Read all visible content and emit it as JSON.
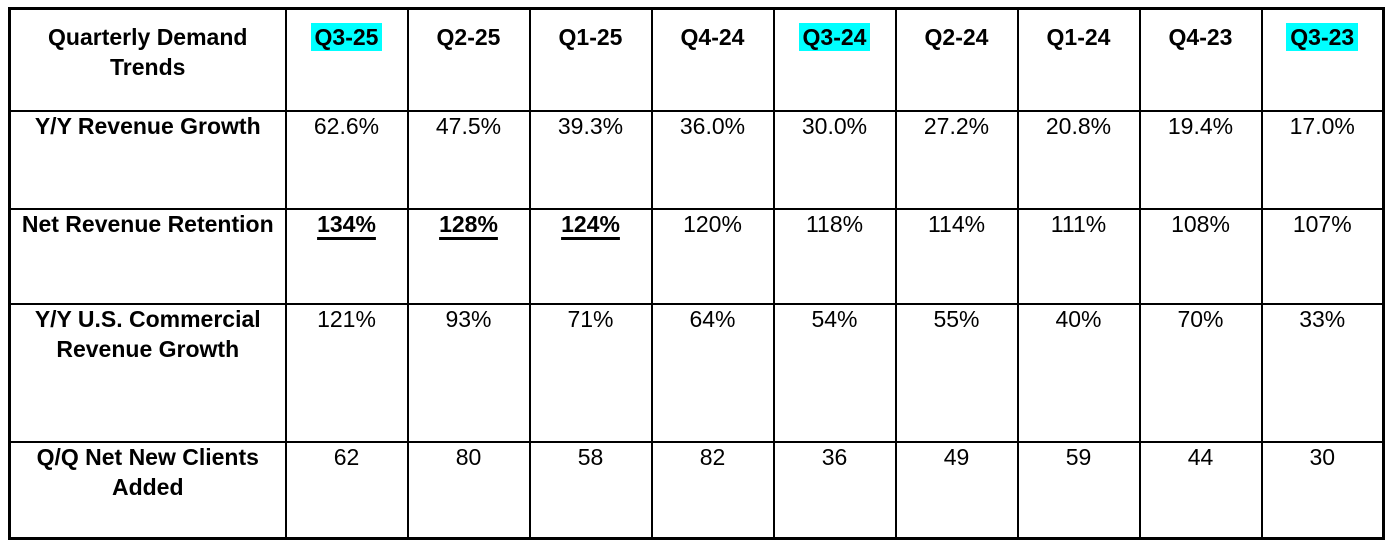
{
  "table": {
    "corner_label": "Quarterly Demand Trends",
    "columns": [
      "Q3-25",
      "Q2-25",
      "Q1-25",
      "Q4-24",
      "Q3-24",
      "Q2-24",
      "Q1-24",
      "Q4-23",
      "Q3-23"
    ],
    "highlighted_columns": [
      "Q3-25",
      "Q3-24",
      "Q3-23"
    ],
    "rows": [
      {
        "label": "Y/Y Revenue Growth",
        "values": [
          "62.6%",
          "47.5%",
          "39.3%",
          "36.0%",
          "30.0%",
          "27.2%",
          "20.8%",
          "19.4%",
          "17.0%"
        ]
      },
      {
        "label": "Net Revenue Retention",
        "values": [
          "134%",
          "128%",
          "124%",
          "120%",
          "118%",
          "114%",
          "111%",
          "108%",
          "107%"
        ],
        "emphasized_values": [
          "134%",
          "128%",
          "124%"
        ]
      },
      {
        "label": "Y/Y U.S. Commercial Revenue Growth",
        "values": [
          "121%",
          "93%",
          "71%",
          "64%",
          "54%",
          "55%",
          "40%",
          "70%",
          "33%"
        ]
      },
      {
        "label": "Q/Q Net New Clients Added",
        "values": [
          "62",
          "80",
          "58",
          "82",
          "36",
          "49",
          "59",
          "44",
          "30"
        ]
      }
    ]
  },
  "colors": {
    "highlight": "#00FFFF",
    "border": "#000000",
    "text": "#000000",
    "background": "#FFFFFF"
  },
  "chart_data": {
    "type": "table",
    "title": "Quarterly Demand Trends",
    "categories": [
      "Q3-25",
      "Q2-25",
      "Q1-25",
      "Q4-24",
      "Q3-24",
      "Q2-24",
      "Q1-24",
      "Q4-23",
      "Q3-23"
    ],
    "series": [
      {
        "name": "Y/Y Revenue Growth",
        "values": [
          62.6,
          47.5,
          39.3,
          36.0,
          30.0,
          27.2,
          20.8,
          19.4,
          17.0
        ],
        "unit": "%"
      },
      {
        "name": "Net Revenue Retention",
        "values": [
          134,
          128,
          124,
          120,
          118,
          114,
          111,
          108,
          107
        ],
        "unit": "%"
      },
      {
        "name": "Y/Y U.S. Commercial Revenue Growth",
        "values": [
          121,
          93,
          71,
          64,
          54,
          55,
          40,
          70,
          33
        ],
        "unit": "%"
      },
      {
        "name": "Q/Q Net New Clients Added",
        "values": [
          62,
          80,
          58,
          82,
          36,
          49,
          59,
          44,
          30
        ],
        "unit": "count"
      }
    ],
    "annotations": {
      "highlighted_quarters": [
        "Q3-25",
        "Q3-24",
        "Q3-23"
      ],
      "underlined_bold_values": [
        "134%",
        "128%",
        "124%"
      ]
    }
  }
}
